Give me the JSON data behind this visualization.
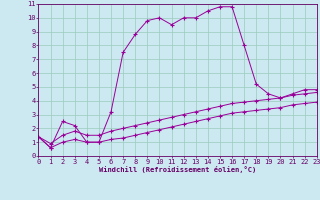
{
  "title": "",
  "xlabel": "Windchill (Refroidissement éolien,°C)",
  "background_color": "#cce8f0",
  "grid_color": "#99ccbb",
  "line_color": "#990099",
  "xlim": [
    0,
    23
  ],
  "ylim": [
    0,
    11
  ],
  "xticks": [
    0,
    1,
    2,
    3,
    4,
    5,
    6,
    7,
    8,
    9,
    10,
    11,
    12,
    13,
    14,
    15,
    16,
    17,
    18,
    19,
    20,
    21,
    22,
    23
  ],
  "yticks": [
    0,
    1,
    2,
    3,
    4,
    5,
    6,
    7,
    8,
    9,
    10,
    11
  ],
  "line1_x": [
    0,
    1,
    2,
    3,
    4,
    5,
    6,
    7,
    8,
    9,
    10,
    11,
    12,
    13,
    14,
    15,
    16,
    17,
    18,
    19,
    20,
    21,
    22,
    23
  ],
  "line1_y": [
    1.4,
    0.6,
    2.5,
    2.2,
    1.0,
    1.0,
    3.2,
    7.5,
    8.8,
    9.8,
    10.0,
    9.5,
    10.0,
    10.0,
    10.5,
    10.8,
    10.8,
    8.0,
    5.2,
    4.5,
    4.2,
    4.5,
    4.8,
    4.8
  ],
  "line2_x": [
    0,
    1,
    2,
    3,
    4,
    5,
    6,
    7,
    8,
    9,
    10,
    11,
    12,
    13,
    14,
    15,
    16,
    17,
    18,
    19,
    20,
    21,
    22,
    23
  ],
  "line2_y": [
    1.4,
    0.9,
    1.5,
    1.8,
    1.5,
    1.5,
    1.8,
    2.0,
    2.2,
    2.4,
    2.6,
    2.8,
    3.0,
    3.2,
    3.4,
    3.6,
    3.8,
    3.9,
    4.0,
    4.1,
    4.2,
    4.4,
    4.5,
    4.6
  ],
  "line3_x": [
    0,
    1,
    2,
    3,
    4,
    5,
    6,
    7,
    8,
    9,
    10,
    11,
    12,
    13,
    14,
    15,
    16,
    17,
    18,
    19,
    20,
    21,
    22,
    23
  ],
  "line3_y": [
    1.4,
    0.6,
    1.0,
    1.2,
    1.0,
    1.0,
    1.2,
    1.3,
    1.5,
    1.7,
    1.9,
    2.1,
    2.3,
    2.5,
    2.7,
    2.9,
    3.1,
    3.2,
    3.3,
    3.4,
    3.5,
    3.7,
    3.8,
    3.9
  ],
  "tick_fontsize": 5,
  "xlabel_fontsize": 5,
  "label_color": "#660066",
  "spine_color": "#660066"
}
